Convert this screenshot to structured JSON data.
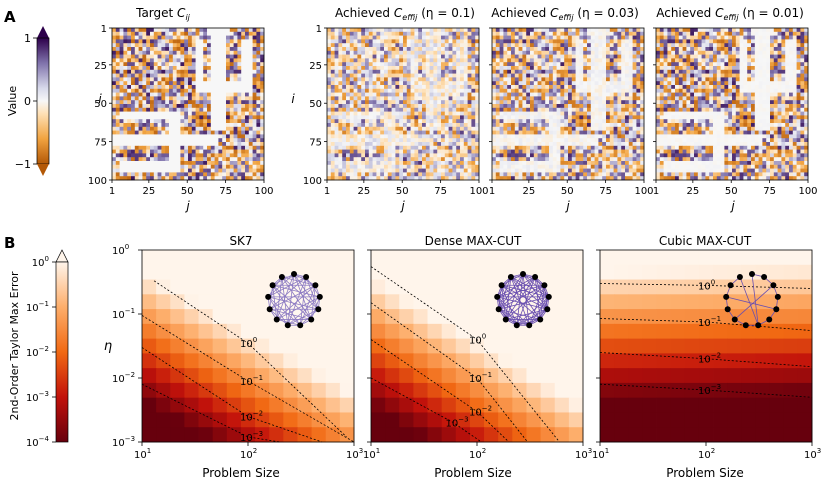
{
  "figure": {
    "panelA_label": "A",
    "panelB_label": "B"
  },
  "colorbarA": {
    "label": "Value",
    "ticks": [
      "1",
      "0",
      "−1"
    ]
  },
  "colorbarB": {
    "label": "2nd-Order Taylor Max Error",
    "ticks": [
      {
        "base": "10",
        "exp": "0"
      },
      {
        "base": "10",
        "exp": "−1"
      },
      {
        "base": "10",
        "exp": "−2"
      },
      {
        "base": "10",
        "exp": "−3"
      },
      {
        "base": "10",
        "exp": "−4"
      }
    ]
  },
  "chart_data": [
    {
      "type": "heatmap",
      "title": "Target C_ij",
      "xlabel": "j",
      "ylabel": "i",
      "xticks": [
        "1",
        "25",
        "50",
        "75",
        "100"
      ],
      "yticks": [
        "1",
        "25",
        "50",
        "75",
        "100"
      ],
      "value_range": [
        -1,
        1
      ],
      "description_value": "random matrix with Psi motif of zeros"
    },
    {
      "type": "heatmap",
      "title": "Achieved C_effij (η = 0.1)",
      "xlabel": "j",
      "ylabel": "i",
      "xticks": [
        "1",
        "25",
        "50",
        "75",
        "100"
      ],
      "yticks": [
        "1",
        "25",
        "50",
        "75",
        "100"
      ],
      "value_range": [
        -1,
        1
      ]
    },
    {
      "type": "heatmap",
      "title": "Achieved C_effij (η = 0.03)",
      "xlabel": "j",
      "xticks": [
        "1",
        "25",
        "50",
        "75",
        "100"
      ],
      "value_range": [
        -1,
        1
      ]
    },
    {
      "type": "heatmap",
      "title": "Achieved C_effij (η = 0.01)",
      "xlabel": "j",
      "xticks": [
        "1",
        "25",
        "50",
        "75",
        "100"
      ],
      "value_range": [
        -1,
        1
      ]
    },
    {
      "type": "heatmap",
      "title": "SK7",
      "xlabel": "Problem Size",
      "ylabel": "η",
      "xlim": [
        10,
        1000
      ],
      "ylim": [
        0.001,
        1
      ],
      "xscale": "log",
      "yscale": "log",
      "contours": [
        {
          "label": "10^0",
          "x": [
            13,
            100,
            850
          ],
          "y": [
            0.33,
            0.035,
            0.0012
          ]
        },
        {
          "label": "10^-1",
          "x": [
            10,
            100,
            1000
          ],
          "y": [
            0.095,
            0.009,
            0.001
          ]
        },
        {
          "label": "10^-2",
          "x": [
            10,
            100,
            500
          ],
          "y": [
            0.03,
            0.0025,
            0.001
          ]
        },
        {
          "label": "10^-3",
          "x": [
            10,
            100,
            200
          ],
          "y": [
            0.008,
            0.0012,
            0.001
          ]
        }
      ],
      "inset_graph": "complete-like graph, 13 nodes"
    },
    {
      "type": "heatmap",
      "title": "Dense MAX-CUT",
      "xlabel": "Problem Size",
      "xlim": [
        10,
        1000
      ],
      "ylim": [
        0.001,
        1
      ],
      "xscale": "log",
      "yscale": "log",
      "contours": [
        {
          "label": "10^0",
          "x": [
            10,
            100,
            600
          ],
          "y": [
            0.55,
            0.04,
            0.001
          ]
        },
        {
          "label": "10^-1",
          "x": [
            10,
            100,
            300
          ],
          "y": [
            0.15,
            0.01,
            0.001
          ]
        },
        {
          "label": "10^-2",
          "x": [
            10,
            100,
            200
          ],
          "y": [
            0.04,
            0.003,
            0.001
          ]
        },
        {
          "label": "10^-3",
          "x": [
            10,
            60,
            110
          ],
          "y": [
            0.01,
            0.002,
            0.001
          ]
        }
      ],
      "inset_graph": "dense graph, 13 nodes"
    },
    {
      "type": "heatmap",
      "title": "Cubic MAX-CUT",
      "xlabel": "Problem Size",
      "xlim": [
        10,
        1000
      ],
      "ylim": [
        0.001,
        1
      ],
      "xscale": "log",
      "yscale": "log",
      "contours": [
        {
          "label": "10^0",
          "x": [
            10,
            100,
            1000
          ],
          "y": [
            0.3,
            0.28,
            0.25
          ]
        },
        {
          "label": "10^-1",
          "x": [
            10,
            100,
            1000
          ],
          "y": [
            0.085,
            0.075,
            0.055
          ]
        },
        {
          "label": "10^-2",
          "x": [
            10,
            100,
            1000
          ],
          "y": [
            0.025,
            0.02,
            0.015
          ]
        },
        {
          "label": "10^-3",
          "x": [
            10,
            100,
            1000
          ],
          "y": [
            0.008,
            0.0065,
            0.005
          ]
        }
      ],
      "inset_graph": "cubic graph, 13 nodes"
    }
  ],
  "axes_labels": {
    "j": "j",
    "i": "i",
    "eta": "η",
    "problem_size": "Problem Size"
  },
  "tick_labels": {
    "matrix": [
      "1",
      "25",
      "50",
      "75",
      "100"
    ],
    "log_x": [
      {
        "base": "10",
        "exp": "1"
      },
      {
        "base": "10",
        "exp": "2"
      },
      {
        "base": "10",
        "exp": "3"
      }
    ],
    "log_y": [
      {
        "base": "10",
        "exp": "0"
      },
      {
        "base": "10",
        "exp": "−1"
      },
      {
        "base": "10",
        "exp": "−2"
      },
      {
        "base": "10",
        "exp": "−3"
      }
    ]
  },
  "titles": {
    "target": {
      "main": "Target ",
      "sym": "C",
      "sub": "ij"
    },
    "a01": {
      "pre": "Achieved ",
      "sym": "C",
      "sub": "effij",
      "post": " (η = 0.1)"
    },
    "a003": {
      "pre": "Achieved ",
      "sym": "C",
      "sub": "effij",
      "post": " (η = 0.03)"
    },
    "a001": {
      "pre": "Achieved ",
      "sym": "C",
      "sub": "effij",
      "post": " (η = 0.01)"
    },
    "sk7": "SK7",
    "dense": "Dense MAX-CUT",
    "cubic": "Cubic MAX-CUT"
  },
  "colors": {
    "orange": "#e08214",
    "purple": "#542788",
    "white": "#f7f7f7"
  }
}
